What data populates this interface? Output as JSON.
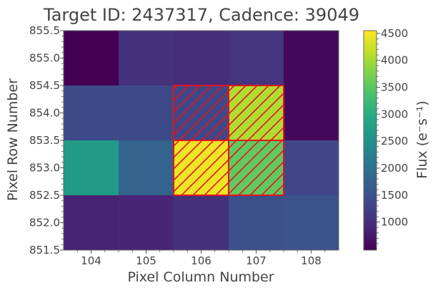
{
  "chart_data": {
    "type": "heatmap",
    "title": "Target ID: 2437317, Cadence: 39049",
    "xlabel": "Pixel Column Number",
    "ylabel": "Pixel Row Number",
    "colorbar_label": "Flux (e⁻s⁻¹)",
    "colormap": "viridis",
    "xlim": [
      103.5,
      108.5
    ],
    "ylim": [
      851.5,
      855.5
    ],
    "x_ticks": [
      104,
      105,
      106,
      107,
      108
    ],
    "x_tick_labels": [
      "104",
      "105",
      "106",
      "107",
      "108"
    ],
    "y_ticks": [
      851.5,
      852.0,
      852.5,
      853.0,
      853.5,
      854.0,
      854.5,
      855.0,
      855.5
    ],
    "y_tick_labels": [
      "851.5",
      "852.0",
      "852.5",
      "853.0",
      "853.5",
      "854.0",
      "854.5",
      "855.0",
      "855.5"
    ],
    "color_range": [
      480,
      4550
    ],
    "colorbar_ticks": [
      1000,
      1500,
      2000,
      2500,
      3000,
      3500,
      4000,
      4500
    ],
    "colorbar_tick_labels": [
      "1000",
      "1500",
      "2000",
      "2500",
      "3000",
      "3500",
      "4000",
      "4500"
    ],
    "columns": [
      104,
      105,
      106,
      107,
      108
    ],
    "rows": [
      855,
      854,
      853,
      852
    ],
    "values": [
      [
        480,
        1050,
        1000,
        1100,
        560
      ],
      [
        1420,
        1380,
        1350,
        4050,
        560
      ],
      [
        2700,
        1780,
        4450,
        3550,
        1320
      ],
      [
        870,
        900,
        1050,
        1470,
        1500
      ]
    ],
    "aperture_pixels": [
      {
        "col": 106,
        "row": 854
      },
      {
        "col": 107,
        "row": 854
      },
      {
        "col": 106,
        "row": 853
      },
      {
        "col": 107,
        "row": 853
      }
    ],
    "aperture_color": "#e3141f"
  }
}
